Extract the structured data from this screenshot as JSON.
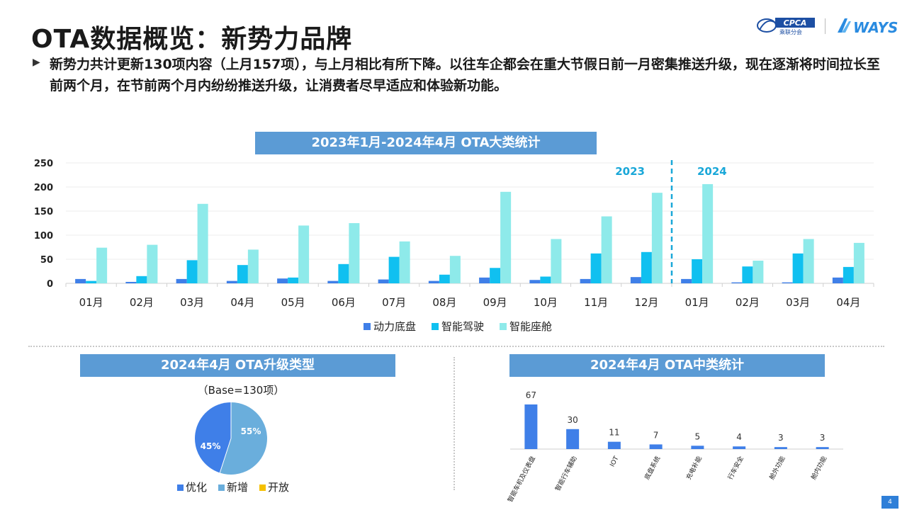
{
  "page": {
    "title": "OTA数据概览：新势力品牌",
    "bullet": "新势力共计更新130项内容（上月157项），与上月相比有所下降。以往车企都会在重大节假日前一月密集推送升级，现在逐渐将时间拉长至前两个月，在节前两个月内纷纷推送升级，让消费者尽早适应和体验新功能。",
    "page_number": "4",
    "logo_cpca_text": "CPCA",
    "logo_cpca_sub": "乘联分会",
    "logo_ways_text": "WAYS"
  },
  "colors": {
    "header_bg": "#5b9bd5",
    "powertrain": "#3f7fe8",
    "adas": "#10c0f0",
    "cockpit": "#8eeaea",
    "year_divider": "#19a7d8",
    "pie_optimize": "#3f7fe8",
    "pie_new": "#6aaedc",
    "pie_open": "#f5c000",
    "mid_bar": "#3f7fe8"
  },
  "chart_data": [
    {
      "type": "bar",
      "title": "2023年1月-2024年4月 OTA大类统计",
      "categories": [
        "01月",
        "02月",
        "03月",
        "04月",
        "05月",
        "06月",
        "07月",
        "08月",
        "09月",
        "10月",
        "11月",
        "12月",
        "01月",
        "02月",
        "03月",
        "04月"
      ],
      "group_labels": [
        "2023",
        "2024"
      ],
      "year_split_after_index": 11,
      "ylim": [
        0,
        250
      ],
      "yticks": [
        0,
        50,
        100,
        150,
        200,
        250
      ],
      "grid": true,
      "legend_position": "bottom",
      "series": [
        {
          "name": "动力底盘",
          "values": [
            9,
            3,
            9,
            5,
            10,
            5,
            8,
            5,
            12,
            7,
            9,
            13,
            9,
            2,
            2,
            12
          ]
        },
        {
          "name": "智能驾驶",
          "values": [
            5,
            15,
            48,
            38,
            12,
            40,
            55,
            18,
            32,
            14,
            62,
            65,
            50,
            35,
            62,
            34
          ]
        },
        {
          "name": "智能座舱",
          "values": [
            74,
            80,
            165,
            70,
            120,
            125,
            87,
            57,
            190,
            92,
            139,
            188,
            206,
            47,
            92,
            84
          ]
        }
      ]
    },
    {
      "type": "pie",
      "title": "2024年4月 OTA升级类型",
      "subtitle": "（Base=130项）",
      "legend_position": "bottom",
      "slices": [
        {
          "name": "优化",
          "value": 45,
          "label": "45%"
        },
        {
          "name": "新增",
          "value": 55,
          "label": "55%"
        },
        {
          "name": "开放",
          "value": 0,
          "label": ""
        }
      ]
    },
    {
      "type": "bar",
      "title": "2024年4月 OTA中类统计",
      "categories": [
        "智能车机及仪表盘",
        "智能行车辅助",
        "IOT",
        "底盘系统",
        "充电补能",
        "行车安全",
        "舱外功能",
        "舱内功能"
      ],
      "values": [
        67,
        30,
        11,
        7,
        5,
        4,
        3,
        3
      ],
      "ylim": [
        0,
        67
      ]
    }
  ]
}
